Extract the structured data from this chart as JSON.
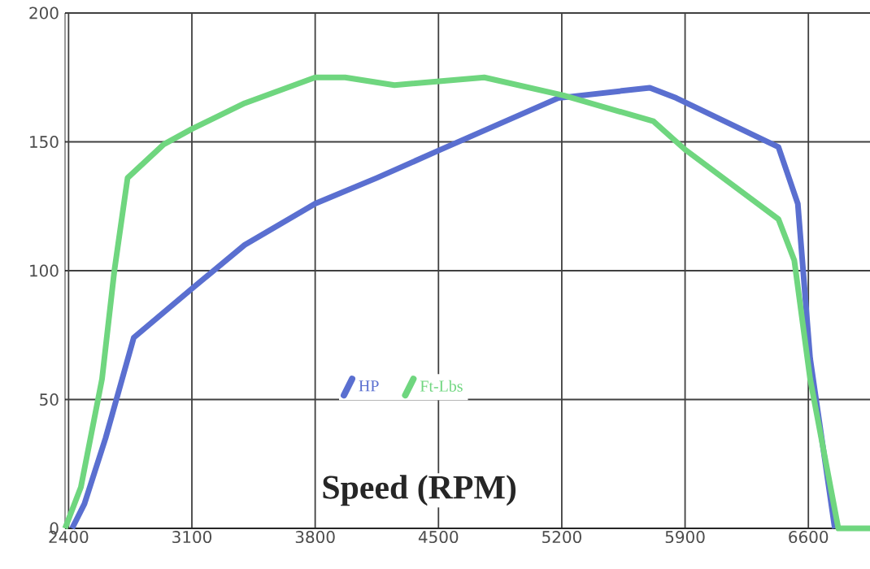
{
  "chart_data": {
    "type": "line",
    "xlabel": "Speed (RPM)",
    "xlim": [
      2380,
      6950
    ],
    "ylim": [
      0,
      200
    ],
    "xticks": [
      2400,
      3100,
      3800,
      4500,
      5200,
      5900,
      6600
    ],
    "yticks": [
      0,
      50,
      100,
      150,
      200
    ],
    "grid": true,
    "legend": "bottom",
    "marker": "none",
    "line_style": "solid",
    "series": [
      {
        "name": "HP",
        "color": "#5a6fd0",
        "x": [
          2420,
          2490,
          2610,
          2770,
          3100,
          3400,
          3800,
          4150,
          4480,
          5180,
          5700,
          5850,
          6430,
          6540,
          6610,
          6750
        ],
        "values": [
          0,
          9.5,
          35,
          74,
          93,
          110,
          126,
          136,
          146,
          167,
          171,
          167,
          148,
          126,
          66,
          0
        ]
      },
      {
        "name": "Ft-Lbs",
        "color": "#6fd67f",
        "x": [
          2380,
          2470,
          2590,
          2660,
          2735,
          2940,
          3100,
          3400,
          3800,
          3970,
          4250,
          4760,
          5210,
          5720,
          5900,
          6430,
          6520,
          6610,
          6770,
          6950
        ],
        "values": [
          0,
          16,
          58,
          100,
          136,
          149,
          155,
          165,
          175,
          175,
          172,
          175,
          168,
          158,
          147,
          120,
          104,
          58,
          0,
          0
        ]
      }
    ]
  }
}
